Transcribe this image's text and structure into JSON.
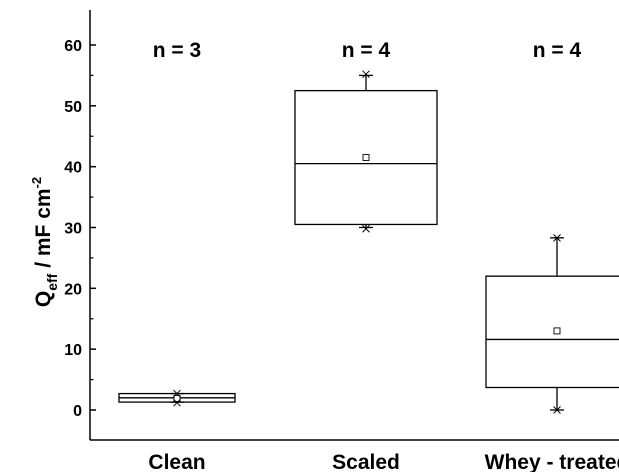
{
  "chart_data": {
    "type": "box",
    "ylabel": {
      "main": "Q",
      "subscript": "eff",
      "unit": " / mF cm",
      "superscript": "-2"
    },
    "xlabel": "",
    "ylim": [
      -3.5,
      65
    ],
    "yticks": [
      0,
      10,
      20,
      30,
      40,
      50,
      60
    ],
    "grid": false,
    "categories": [
      "Clean",
      "Scaled",
      "Whey - treated"
    ],
    "annotations": [
      "n = 3",
      "n = 4",
      "n = 4"
    ],
    "boxes": [
      {
        "category": "Clean",
        "q1": 1.3,
        "median": 2.0,
        "q3": 2.7,
        "whisker_low": 1.3,
        "whisker_high": 2.7,
        "mean": 1.9,
        "min": 1.2,
        "max": 2.7
      },
      {
        "category": "Scaled",
        "q1": 30.5,
        "median": 40.5,
        "q3": 52.5,
        "whisker_low": 30.0,
        "whisker_high": 55.0,
        "mean": 41.5,
        "min": 29.8,
        "max": 55.2
      },
      {
        "category": "Whey - treated",
        "q1": 3.7,
        "median": 11.6,
        "q3": 22.0,
        "whisker_low": 0.0,
        "whisker_high": 28.3,
        "mean": 13.0,
        "min": 0.0,
        "max": 28.3
      }
    ],
    "colors": {
      "box_stroke": "#000000",
      "background": "#ffffff"
    }
  }
}
